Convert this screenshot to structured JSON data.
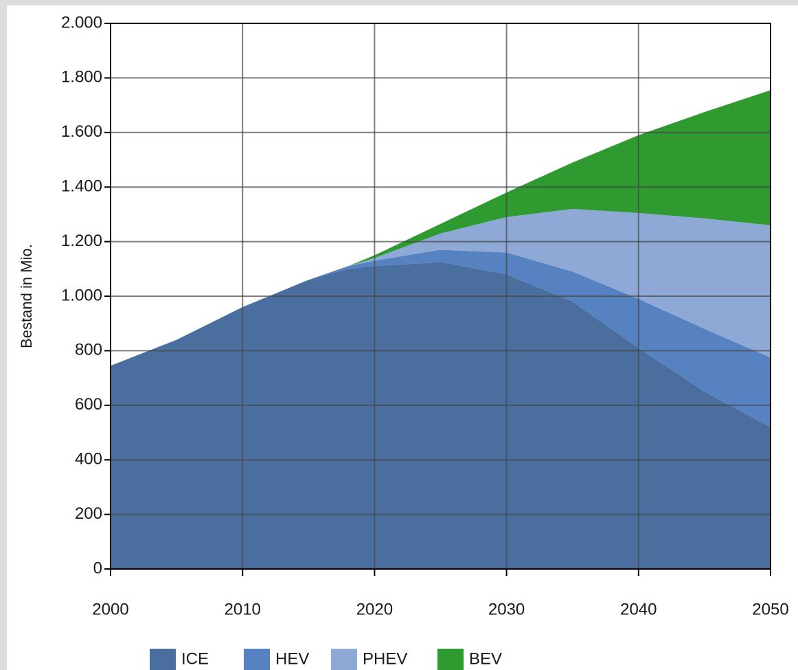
{
  "chart_data": {
    "type": "stacked-area",
    "y_label": "Bestand in Mio.",
    "x": [
      2000,
      2005,
      2010,
      2015,
      2018,
      2020,
      2025,
      2030,
      2035,
      2040,
      2045,
      2050
    ],
    "series": [
      {
        "name": "ICE",
        "color": "#4a6f9f",
        "values": [
          745,
          840,
          960,
          1060,
          1100,
          1110,
          1125,
          1080,
          980,
          810,
          650,
          520
        ]
      },
      {
        "name": "HEV",
        "color": "#5782c2",
        "values": [
          0,
          0,
          0,
          0,
          10,
          20,
          45,
          80,
          110,
          180,
          230,
          255
        ]
      },
      {
        "name": "PHEV",
        "color": "#8fa9d6",
        "values": [
          0,
          0,
          0,
          0,
          0,
          10,
          60,
          130,
          230,
          315,
          405,
          485
        ]
      },
      {
        "name": "BEV",
        "color": "#2f9a2f",
        "values": [
          0,
          0,
          0,
          0,
          0,
          10,
          35,
          90,
          170,
          285,
          390,
          495
        ]
      }
    ],
    "xlim": [
      2000,
      2050
    ],
    "xticks": [
      2000,
      2010,
      2020,
      2030,
      2040,
      2050
    ],
    "ylim": [
      0,
      2000
    ],
    "yticks": [
      0,
      200,
      400,
      600,
      800,
      {
        "value": 1000,
        "label": "1.000"
      },
      {
        "value": 1200,
        "label": "1.200"
      },
      {
        "value": 1400,
        "label": "1.400"
      },
      {
        "value": 1600,
        "label": "1.600"
      },
      {
        "value": 1800,
        "label": "1.800"
      },
      {
        "value": 2000,
        "label": "2.000"
      }
    ],
    "grid": true,
    "legend": "bottom"
  }
}
